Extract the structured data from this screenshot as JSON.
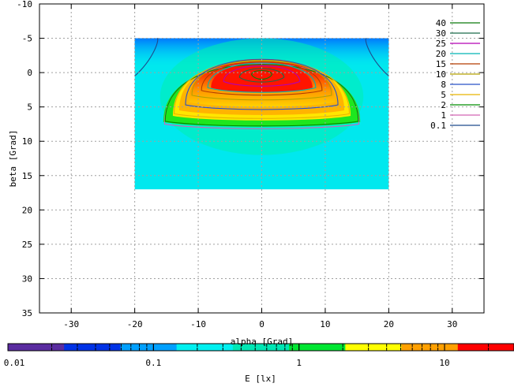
{
  "chart_data": {
    "type": "heatmap",
    "title": "",
    "xlabel": "alpha [Grad]",
    "ylabel": "beta [Grad]",
    "xlim": [
      -35,
      35
    ],
    "ylim": [
      -10,
      35
    ],
    "y_axis_inverted": true,
    "grid": true,
    "x_ticks": [
      -30,
      -20,
      -10,
      0,
      10,
      20,
      30
    ],
    "y_ticks": [
      -10,
      -5,
      0,
      5,
      10,
      15,
      20,
      25,
      30,
      35
    ],
    "x_tick_labels": [
      "-30",
      "-20",
      "-10",
      "0",
      "10",
      "20",
      "30"
    ],
    "y_tick_labels": [
      "-10",
      "-5",
      "0",
      "5",
      "10",
      "15",
      "20",
      "25",
      "30",
      "35"
    ],
    "data_region": {
      "alpha": [
        -20,
        20
      ],
      "beta": [
        -5,
        17
      ]
    },
    "contour_levels": [
      {
        "name": "40",
        "color": "#0a7a0a"
      },
      {
        "name": "30",
        "color": "#1a6a4a"
      },
      {
        "name": "25",
        "color": "#b400b4"
      },
      {
        "name": "20",
        "color": "#00b4b4"
      },
      {
        "name": "15",
        "color": "#b43c00"
      },
      {
        "name": "10",
        "color": "#b4a000"
      },
      {
        "name": "8",
        "color": "#2850c8"
      },
      {
        "name": "5",
        "color": "#e6b400"
      },
      {
        "name": "2",
        "color": "#008c00"
      },
      {
        "name": "1",
        "color": "#d264b4"
      },
      {
        "name": "0.1",
        "color": "#1e4b8c"
      }
    ],
    "legend_position": "top-right",
    "colorbar": {
      "label": "E [lx]",
      "scale": "log",
      "range": [
        0.01,
        30
      ],
      "tick_labels": [
        "0.01",
        "0.1",
        "1",
        "10"
      ],
      "colors": [
        "#5a2ca0",
        "#0032e6",
        "#00a0ff",
        "#00f0f0",
        "#00e6b4",
        "#00e632",
        "#ffff00",
        "#ffa000",
        "#ff0000"
      ]
    }
  }
}
